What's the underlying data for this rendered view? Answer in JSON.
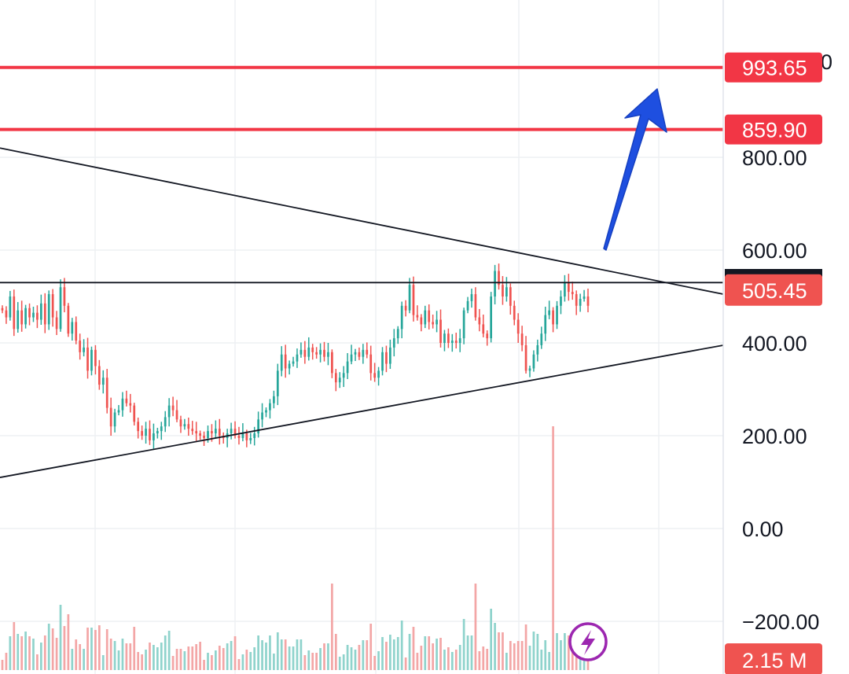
{
  "chart_data": {
    "type": "candlestick",
    "y_axis": {
      "ticks": [
        "800.00",
        "600.00",
        "400.00",
        "200.00",
        "0.00",
        "−200.00"
      ],
      "tick_values": [
        800,
        600,
        400,
        200,
        0,
        -200
      ],
      "range": [
        -285,
        1140
      ],
      "side": "right",
      "truncated_top_glyph": "0"
    },
    "grid": true,
    "horizontal_levels": [
      {
        "label": "993.65",
        "value": 993.65,
        "color": "#f23645"
      },
      {
        "label": "859.90",
        "value": 859.9,
        "color": "#f23645"
      }
    ],
    "current_price": {
      "label": "505.45",
      "value": 505.45,
      "color": "#ef5350"
    },
    "volume_badge": {
      "label": "2.15 M",
      "color": "#ef5350"
    },
    "resistance_level": 530,
    "descending_trendline": {
      "start_value": 820,
      "end_value": 505
    },
    "ascending_trendline": {
      "start_value": 110,
      "end_value": 395
    },
    "arrow": {
      "direction": "up",
      "color": "#1e4fe0"
    },
    "colors": {
      "up": "#26a69a",
      "down": "#ef5350",
      "volume_up": "#8fd3cc",
      "volume_down": "#f3a6a6",
      "grid": "#eef0f3",
      "background": "#ffffff"
    },
    "closes": [
      470,
      455,
      500,
      430,
      470,
      440,
      475,
      455,
      465,
      450,
      485,
      440,
      505,
      455,
      430,
      520,
      480,
      420,
      445,
      405,
      380,
      390,
      340,
      385,
      350,
      310,
      325,
      260,
      220,
      250,
      255,
      280,
      270,
      265,
      230,
      210,
      200,
      215,
      190,
      205,
      210,
      220,
      240,
      265,
      255,
      235,
      220,
      225,
      215,
      210,
      205,
      200,
      195,
      210,
      205,
      215,
      200,
      195,
      205,
      215,
      200,
      195,
      205,
      190,
      195,
      205,
      235,
      250,
      255,
      270,
      285,
      340,
      375,
      345,
      355,
      360,
      375,
      385,
      370,
      390,
      380,
      375,
      385,
      370,
      380,
      335,
      315,
      325,
      335,
      360,
      375,
      380,
      370,
      385,
      375,
      335,
      325,
      340,
      380,
      355,
      390,
      410,
      430,
      480,
      470,
      525,
      460,
      455,
      440,
      470,
      445,
      440,
      450,
      400,
      420,
      400,
      405,
      400,
      410,
      470,
      490,
      505,
      455,
      440,
      420,
      410,
      500,
      555,
      525,
      500,
      520,
      480,
      450,
      420,
      395,
      340,
      345,
      375,
      395,
      420,
      460,
      470,
      440,
      480,
      500,
      530,
      510,
      505,
      480,
      495,
      500,
      480
    ]
  }
}
